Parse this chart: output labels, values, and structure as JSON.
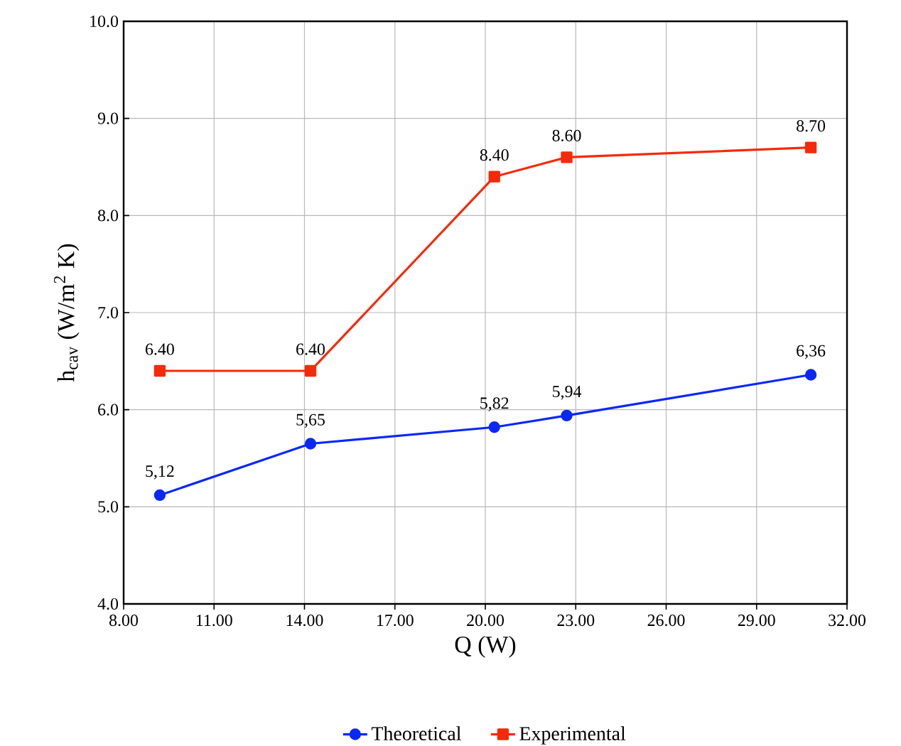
{
  "chart_data": {
    "type": "line",
    "xlabel": "Q (W)",
    "ylabel": "h$_{cav}$  (W/m$^{2}$ K)",
    "xlim": [
      8,
      32
    ],
    "xticks": [
      {
        "value": 8,
        "label": "8.00"
      },
      {
        "value": 11,
        "label": "11.00"
      },
      {
        "value": 14,
        "label": "14.00"
      },
      {
        "value": 17,
        "label": "17.00"
      },
      {
        "value": 20,
        "label": "20.00"
      },
      {
        "value": 23,
        "label": "23.00"
      },
      {
        "value": 26,
        "label": "26.00"
      },
      {
        "value": 29,
        "label": "29.00"
      },
      {
        "value": 32,
        "label": "32.00"
      }
    ],
    "ylim": [
      4,
      10
    ],
    "yticks": [
      {
        "value": 4,
        "label": "4.0"
      },
      {
        "value": 5,
        "label": "5.0"
      },
      {
        "value": 6,
        "label": "6.0"
      },
      {
        "value": 7,
        "label": "7.0"
      },
      {
        "value": 8,
        "label": "8.0"
      },
      {
        "value": 9,
        "label": "9.0"
      },
      {
        "value": 10,
        "label": "10.0"
      }
    ],
    "grid": true,
    "legend": "bottom",
    "series": [
      {
        "name": "Theoretical",
        "color": "#0a28f5",
        "marker": "circle",
        "x": [
          9.2,
          14.2,
          20.3,
          22.7,
          30.8
        ],
        "values": [
          5.12,
          5.65,
          5.82,
          5.94,
          6.36
        ],
        "value_labels": [
          "5,12",
          "5,65",
          "5,82",
          "5,94",
          "6,36"
        ]
      },
      {
        "name": "Experimental",
        "color": "#f52a0a",
        "marker": "square",
        "x": [
          9.2,
          14.2,
          20.3,
          22.7,
          30.8
        ],
        "values": [
          6.4,
          6.4,
          8.4,
          8.6,
          8.7
        ],
        "value_labels": [
          "6.40",
          "6.40",
          "8.40",
          "8.60",
          "8.70"
        ]
      }
    ]
  }
}
